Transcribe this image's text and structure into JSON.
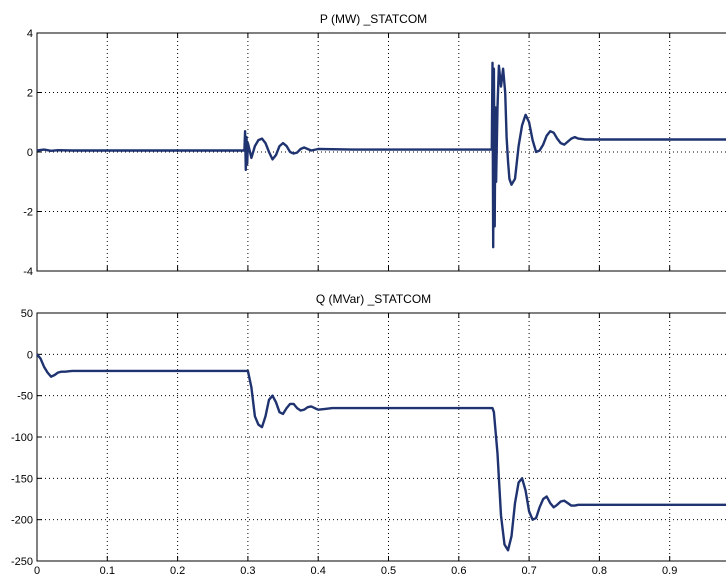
{
  "colors": {
    "line": "#1f3370",
    "axis": "#000000",
    "background": "#ffffff"
  },
  "chart_data": [
    {
      "type": "line",
      "title": "P (MW) _STATCOM",
      "xlabel": "",
      "ylabel": "",
      "xlim": [
        0,
        1
      ],
      "ylim": [
        -4,
        4
      ],
      "xticks": [
        0,
        0.1,
        0.2,
        0.3,
        0.4,
        0.5,
        0.6,
        0.7,
        0.8,
        0.9
      ],
      "yticks": [
        4,
        2,
        0,
        -2,
        -4
      ],
      "show_xtick_labels": false,
      "grid": true,
      "series": [
        {
          "x": [
            0,
            0.01,
            0.02,
            0.03,
            0.05,
            0.1,
            0.2,
            0.295,
            0.296,
            0.297,
            0.298,
            0.299,
            0.3,
            0.302,
            0.305,
            0.31,
            0.315,
            0.32,
            0.325,
            0.33,
            0.335,
            0.34,
            0.345,
            0.35,
            0.355,
            0.36,
            0.365,
            0.37,
            0.375,
            0.38,
            0.39,
            0.4,
            0.45,
            0.5,
            0.6,
            0.647,
            0.648,
            0.649,
            0.65,
            0.651,
            0.652,
            0.653,
            0.655,
            0.657,
            0.66,
            0.663,
            0.666,
            0.668,
            0.67,
            0.672,
            0.675,
            0.68,
            0.685,
            0.69,
            0.695,
            0.7,
            0.705,
            0.71,
            0.715,
            0.72,
            0.725,
            0.73,
            0.735,
            0.74,
            0.745,
            0.75,
            0.755,
            0.76,
            0.765,
            0.77,
            0.78,
            0.79,
            0.8,
            0.85,
            0.9,
            1.0
          ],
          "y": [
            0.05,
            0.08,
            0.04,
            0.06,
            0.05,
            0.05,
            0.05,
            0.05,
            0.7,
            -0.6,
            0.5,
            -0.4,
            0.3,
            0.1,
            -0.2,
            0.2,
            0.4,
            0.45,
            0.3,
            0.0,
            -0.25,
            -0.1,
            0.2,
            0.3,
            0.2,
            0.0,
            -0.05,
            -0.02,
            0.1,
            0.15,
            0.05,
            0.1,
            0.08,
            0.08,
            0.08,
            0.08,
            3.0,
            -3.2,
            2.8,
            -2.5,
            1.5,
            -1.0,
            1.5,
            2.9,
            2.2,
            2.8,
            2.0,
            0.5,
            -0.3,
            -0.9,
            -1.1,
            -0.9,
            0.2,
            0.9,
            1.25,
            1.0,
            0.4,
            0.0,
            0.05,
            0.25,
            0.55,
            0.7,
            0.65,
            0.45,
            0.3,
            0.25,
            0.35,
            0.45,
            0.5,
            0.45,
            0.42,
            0.42,
            0.42,
            0.42,
            0.42,
            0.42
          ]
        }
      ]
    },
    {
      "type": "line",
      "title": "Q (MVar) _STATCOM",
      "xlabel": "",
      "ylabel": "",
      "xlim": [
        0,
        1
      ],
      "ylim": [
        -250,
        50
      ],
      "xticks": [
        0,
        0.1,
        0.2,
        0.3,
        0.4,
        0.5,
        0.6,
        0.7,
        0.8,
        0.9
      ],
      "xtick_labels": [
        "0",
        "0.1",
        "0.2",
        "0.3",
        "0.4",
        "0.5",
        "0.6",
        "0.7",
        "0.8",
        "0.9"
      ],
      "yticks": [
        50,
        0,
        -50,
        -100,
        -150,
        -200,
        -250
      ],
      "show_xtick_labels": true,
      "grid": true,
      "series": [
        {
          "x": [
            0,
            0.005,
            0.01,
            0.015,
            0.02,
            0.025,
            0.03,
            0.035,
            0.04,
            0.05,
            0.1,
            0.2,
            0.295,
            0.3,
            0.305,
            0.31,
            0.315,
            0.32,
            0.325,
            0.33,
            0.335,
            0.34,
            0.345,
            0.35,
            0.355,
            0.36,
            0.365,
            0.37,
            0.375,
            0.38,
            0.385,
            0.39,
            0.395,
            0.4,
            0.41,
            0.42,
            0.45,
            0.5,
            0.6,
            0.645,
            0.648,
            0.65,
            0.655,
            0.66,
            0.665,
            0.67,
            0.675,
            0.68,
            0.685,
            0.69,
            0.695,
            0.7,
            0.705,
            0.71,
            0.715,
            0.72,
            0.725,
            0.73,
            0.735,
            0.74,
            0.745,
            0.75,
            0.755,
            0.76,
            0.765,
            0.77,
            0.78,
            0.79,
            0.8,
            0.85,
            0.9,
            1.0
          ],
          "y": [
            0,
            -5,
            -15,
            -22,
            -27,
            -25,
            -22,
            -21,
            -21,
            -20,
            -20,
            -20,
            -20,
            -20,
            -40,
            -75,
            -85,
            -88,
            -75,
            -55,
            -50,
            -58,
            -70,
            -72,
            -65,
            -60,
            -60,
            -65,
            -68,
            -67,
            -64,
            -63,
            -65,
            -67,
            -66,
            -65,
            -65,
            -65,
            -65,
            -65,
            -65,
            -70,
            -120,
            -195,
            -230,
            -237,
            -220,
            -180,
            -155,
            -150,
            -165,
            -190,
            -200,
            -198,
            -185,
            -175,
            -172,
            -180,
            -185,
            -182,
            -178,
            -177,
            -180,
            -183,
            -183,
            -182,
            -182,
            -182,
            -182,
            -182,
            -182,
            -182
          ]
        }
      ]
    }
  ]
}
